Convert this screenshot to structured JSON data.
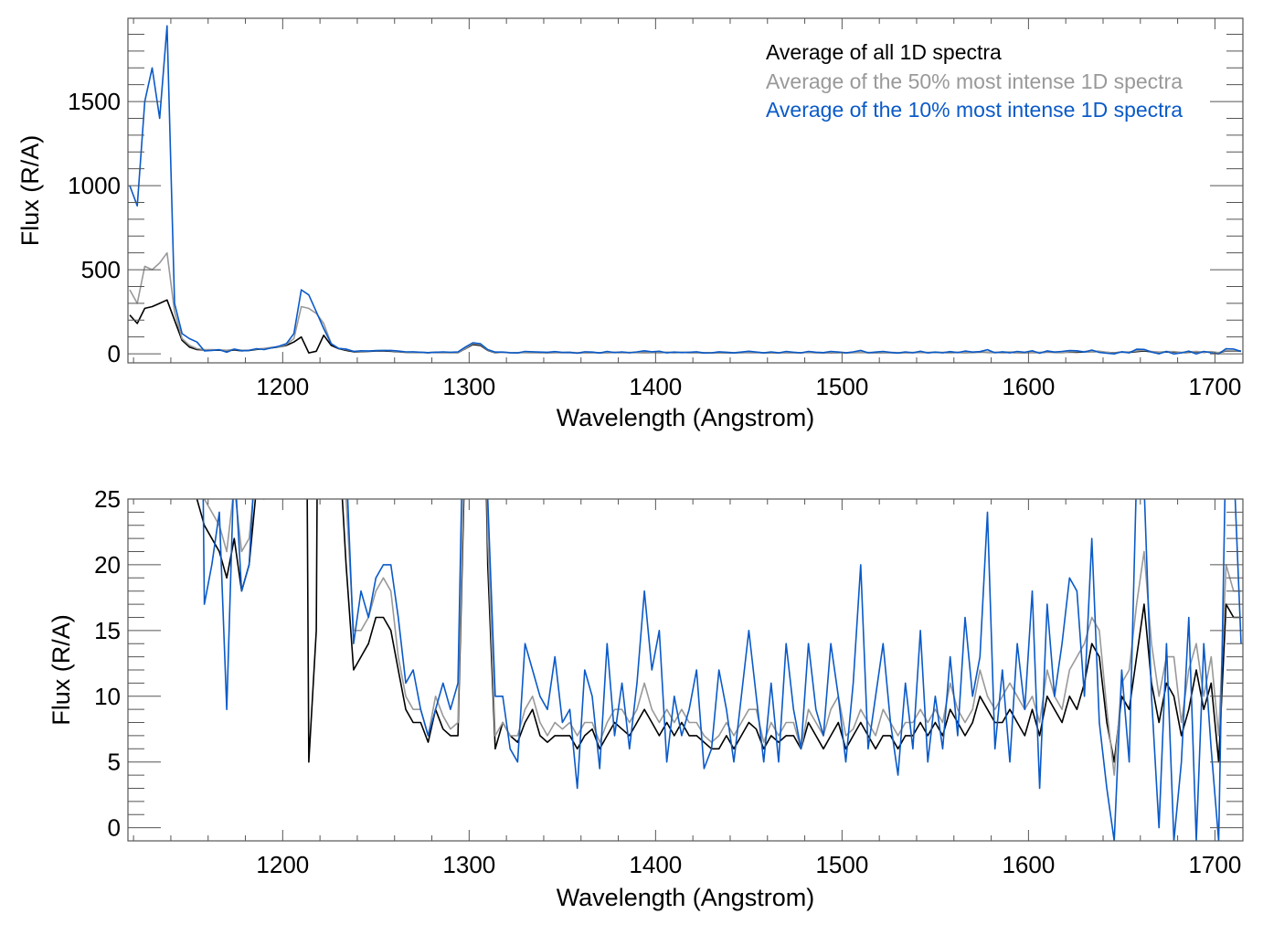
{
  "chart_data": [
    {
      "type": "line",
      "panel": "top",
      "xlabel": "Wavelength (Angstrom)",
      "ylabel": "Flux (R/A)",
      "xlim": [
        1117,
        1715
      ],
      "ylim": [
        -54,
        1995
      ],
      "xticks": [
        1200,
        1300,
        1400,
        1500,
        1600,
        1700
      ],
      "yticks": [
        0,
        500,
        1000,
        1500
      ],
      "x_minor_step": 20,
      "y_minor_step": 100,
      "legend_position": "top-right",
      "legend": [
        {
          "label": "Average of all 1D spectra",
          "color": "#000000"
        },
        {
          "label": "Average of the 50% most intense 1D spectra",
          "color": "#999999"
        },
        {
          "label": "Average of the 10% most intense 1D spectra",
          "color": "#0a5ac8"
        }
      ]
    },
    {
      "type": "line",
      "panel": "bottom",
      "xlabel": "Wavelength (Angstrom)",
      "ylabel": "Flux (R/A)",
      "xlim": [
        1117,
        1715
      ],
      "ylim": [
        -1,
        25
      ],
      "xticks": [
        1200,
        1300,
        1400,
        1500,
        1600,
        1700
      ],
      "yticks": [
        0,
        5,
        10,
        15,
        20,
        25
      ],
      "x_minor_step": 20,
      "y_minor_step": 1
    }
  ],
  "spectra": {
    "x_start": 1118,
    "x_step": 4,
    "series": [
      {
        "name": "Average of all 1D spectra",
        "color": "#000000",
        "values": [
          230,
          180,
          270,
          280,
          300,
          320,
          200,
          80,
          40,
          25,
          23,
          22,
          21,
          19,
          22,
          18,
          20,
          26,
          30,
          35,
          40,
          50,
          70,
          100,
          5,
          15,
          110,
          50,
          30,
          20,
          12,
          13,
          14,
          16,
          16,
          15,
          12,
          9,
          8,
          8,
          6.5,
          9,
          7.5,
          7,
          7,
          30,
          55,
          50,
          20,
          6,
          8,
          7,
          6.5,
          8,
          9,
          7,
          6.5,
          7,
          7,
          7,
          6,
          7,
          7.5,
          6,
          7,
          8,
          7.5,
          7,
          8,
          9,
          8,
          7,
          8,
          7,
          8,
          7,
          7,
          6.5,
          6,
          6,
          7,
          6,
          7,
          8,
          7.5,
          6,
          7,
          6.5,
          7,
          7,
          6,
          8,
          7,
          6,
          7,
          8,
          6,
          7,
          8,
          7,
          6,
          7,
          7,
          6,
          7,
          7,
          8,
          7,
          8,
          7,
          9,
          8,
          7,
          8,
          10,
          9,
          8,
          8,
          9,
          8,
          7,
          9,
          7,
          10,
          9,
          8,
          10,
          9,
          11,
          14,
          13,
          8,
          5,
          10,
          9,
          13,
          17,
          11,
          8,
          11,
          10,
          7,
          9,
          12,
          9,
          11,
          5,
          17,
          16,
          16
        ]
      },
      {
        "name": "Average of the 50% most intense 1D spectra",
        "color": "#999999",
        "values": [
          380,
          300,
          520,
          500,
          540,
          600,
          250,
          90,
          50,
          30,
          25,
          24,
          23,
          21,
          26,
          21,
          22,
          28,
          32,
          38,
          40,
          55,
          90,
          280,
          270,
          240,
          180,
          60,
          32,
          25,
          15,
          15,
          16,
          18,
          19,
          18,
          13,
          10,
          9,
          9,
          7,
          10,
          8.5,
          7.5,
          8,
          32,
          60,
          55,
          22,
          7,
          8,
          7,
          7,
          9,
          10,
          8,
          7,
          8,
          7.5,
          8,
          7,
          8,
          8,
          6.5,
          8,
          9,
          9,
          8,
          9,
          11,
          9,
          8,
          9,
          8,
          9,
          8,
          8,
          7,
          6.5,
          7,
          8,
          7,
          8,
          9,
          9,
          6.5,
          8,
          7,
          8,
          8,
          6,
          9,
          8,
          7,
          9,
          10,
          7,
          7.5,
          9,
          8,
          7,
          9,
          8,
          7,
          8,
          8,
          9,
          8,
          9,
          8,
          11,
          9,
          8,
          9,
          12,
          10,
          9,
          10,
          11,
          10,
          9,
          10,
          8,
          12,
          10,
          9,
          12,
          13,
          14,
          16,
          15,
          9,
          4,
          11,
          12,
          17,
          21,
          14,
          10,
          13,
          13,
          8,
          12,
          14,
          10,
          13,
          7,
          20,
          18,
          18
        ]
      },
      {
        "name": "Average of the 10% most intense 1D spectra",
        "color": "#0a5ac8",
        "values": [
          1000,
          880,
          1500,
          1700,
          1400,
          1950,
          300,
          120,
          90,
          70,
          17,
          20,
          24,
          9,
          28,
          18,
          20,
          30,
          25,
          35,
          45,
          60,
          120,
          380,
          350,
          250,
          150,
          60,
          32,
          28,
          14,
          18,
          16,
          19,
          20,
          20,
          16,
          11,
          12,
          9,
          7,
          9,
          11,
          9,
          11,
          40,
          65,
          60,
          25,
          10,
          10,
          6,
          5,
          14,
          12,
          10,
          9,
          13,
          8,
          9,
          3,
          12,
          10,
          4.5,
          14,
          7,
          11,
          6,
          11,
          18,
          12,
          15,
          5,
          10,
          7,
          9,
          12,
          4.5,
          6,
          12,
          9,
          5,
          10,
          15,
          10,
          5,
          11,
          5,
          14,
          9,
          6,
          14,
          9,
          7,
          14,
          10,
          5,
          11,
          20,
          6,
          10,
          14,
          8,
          4,
          11,
          6,
          15,
          5,
          10,
          6,
          13,
          7,
          16,
          10,
          13,
          24,
          6,
          12,
          5,
          14,
          9,
          18,
          3,
          17,
          10,
          14,
          19,
          18,
          10,
          22,
          8,
          3,
          -1,
          12,
          5,
          27,
          26,
          10,
          0,
          14,
          -1,
          5,
          16,
          -1,
          14,
          6,
          -1,
          30,
          28,
          14
        ]
      }
    ]
  }
}
